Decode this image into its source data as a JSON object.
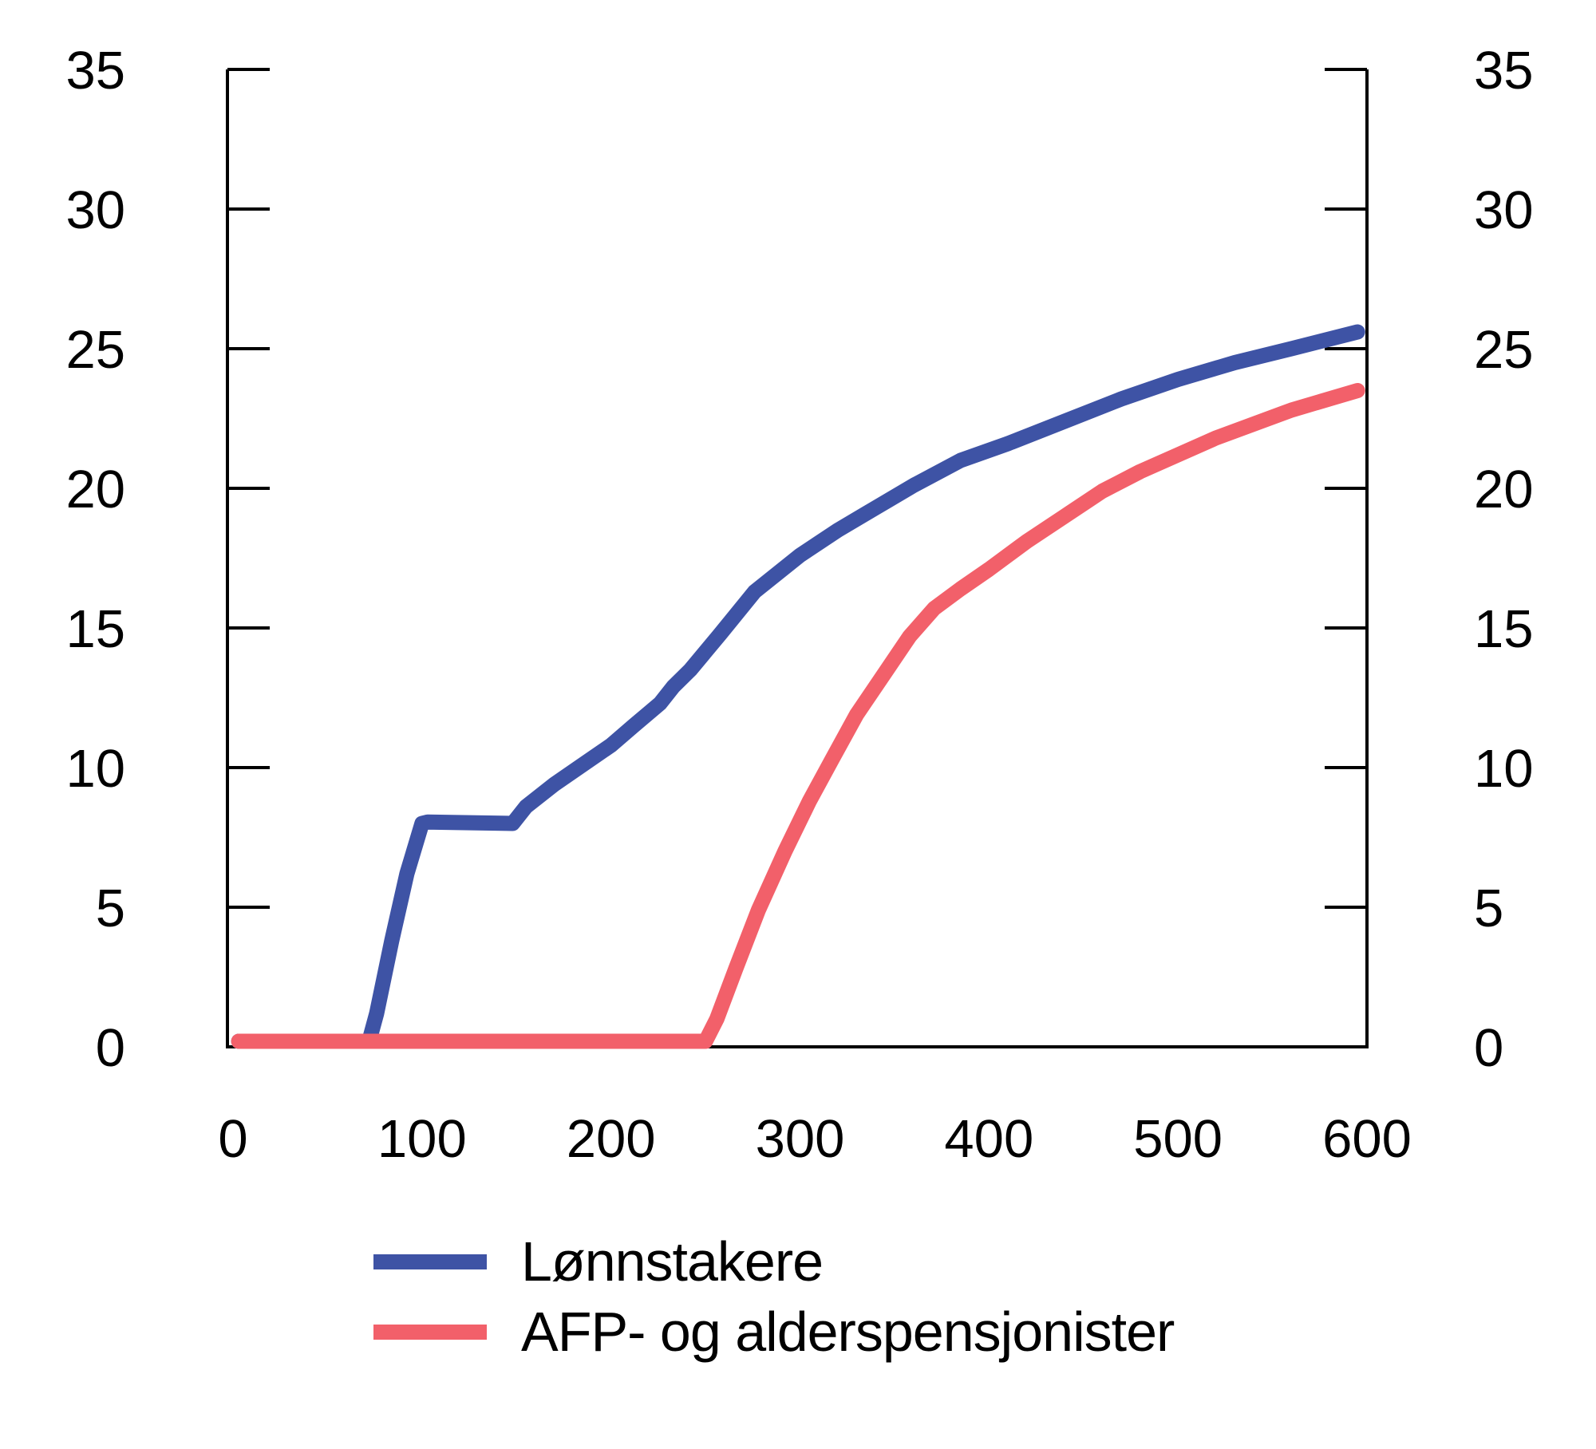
{
  "chart_data": {
    "type": "line",
    "title": "",
    "xlabel": "",
    "ylabel": "",
    "xlim": [
      0,
      600
    ],
    "ylim": [
      0,
      35
    ],
    "xticks": [
      0,
      100,
      200,
      300,
      400,
      500,
      600
    ],
    "yticks": [
      0,
      5,
      10,
      15,
      20,
      25,
      30,
      35
    ],
    "yticks_right": [
      0,
      5,
      10,
      15,
      20,
      25,
      30,
      35
    ],
    "grid": false,
    "legend_position": "bottom-left",
    "axis_color": "#000000",
    "series": [
      {
        "name": "Lønnstakere",
        "color": "#3E53A5",
        "points": [
          [
            3,
            0.2
          ],
          [
            72,
            0.2
          ],
          [
            76,
            1.2
          ],
          [
            84,
            3.8
          ],
          [
            92,
            6.2
          ],
          [
            100,
            8.0
          ],
          [
            103,
            8.05
          ],
          [
            148,
            8.0
          ],
          [
            155,
            8.6
          ],
          [
            170,
            9.4
          ],
          [
            185,
            10.1
          ],
          [
            200,
            10.8
          ],
          [
            212,
            11.5
          ],
          [
            226,
            12.3
          ],
          [
            233,
            12.9
          ],
          [
            242,
            13.5
          ],
          [
            258,
            14.8
          ],
          [
            276,
            16.3
          ],
          [
            300,
            17.6
          ],
          [
            320,
            18.5
          ],
          [
            340,
            19.3
          ],
          [
            360,
            20.1
          ],
          [
            385,
            21.0
          ],
          [
            410,
            21.6
          ],
          [
            440,
            22.4
          ],
          [
            470,
            23.2
          ],
          [
            500,
            23.9
          ],
          [
            530,
            24.5
          ],
          [
            560,
            25.0
          ],
          [
            595,
            25.6
          ]
        ]
      },
      {
        "name": "AFP- og alderspensjonister",
        "color": "#F2606A",
        "points": [
          [
            3,
            0.2
          ],
          [
            250,
            0.2
          ],
          [
            256,
            1.0
          ],
          [
            266,
            2.8
          ],
          [
            278,
            4.9
          ],
          [
            292,
            7.0
          ],
          [
            305,
            8.8
          ],
          [
            317,
            10.3
          ],
          [
            330,
            11.9
          ],
          [
            345,
            13.4
          ],
          [
            358,
            14.7
          ],
          [
            371,
            15.7
          ],
          [
            385,
            16.4
          ],
          [
            400,
            17.1
          ],
          [
            420,
            18.1
          ],
          [
            440,
            19.0
          ],
          [
            460,
            19.9
          ],
          [
            480,
            20.6
          ],
          [
            500,
            21.2
          ],
          [
            520,
            21.8
          ],
          [
            540,
            22.3
          ],
          [
            560,
            22.8
          ],
          [
            580,
            23.2
          ],
          [
            595,
            23.5
          ]
        ]
      }
    ]
  }
}
